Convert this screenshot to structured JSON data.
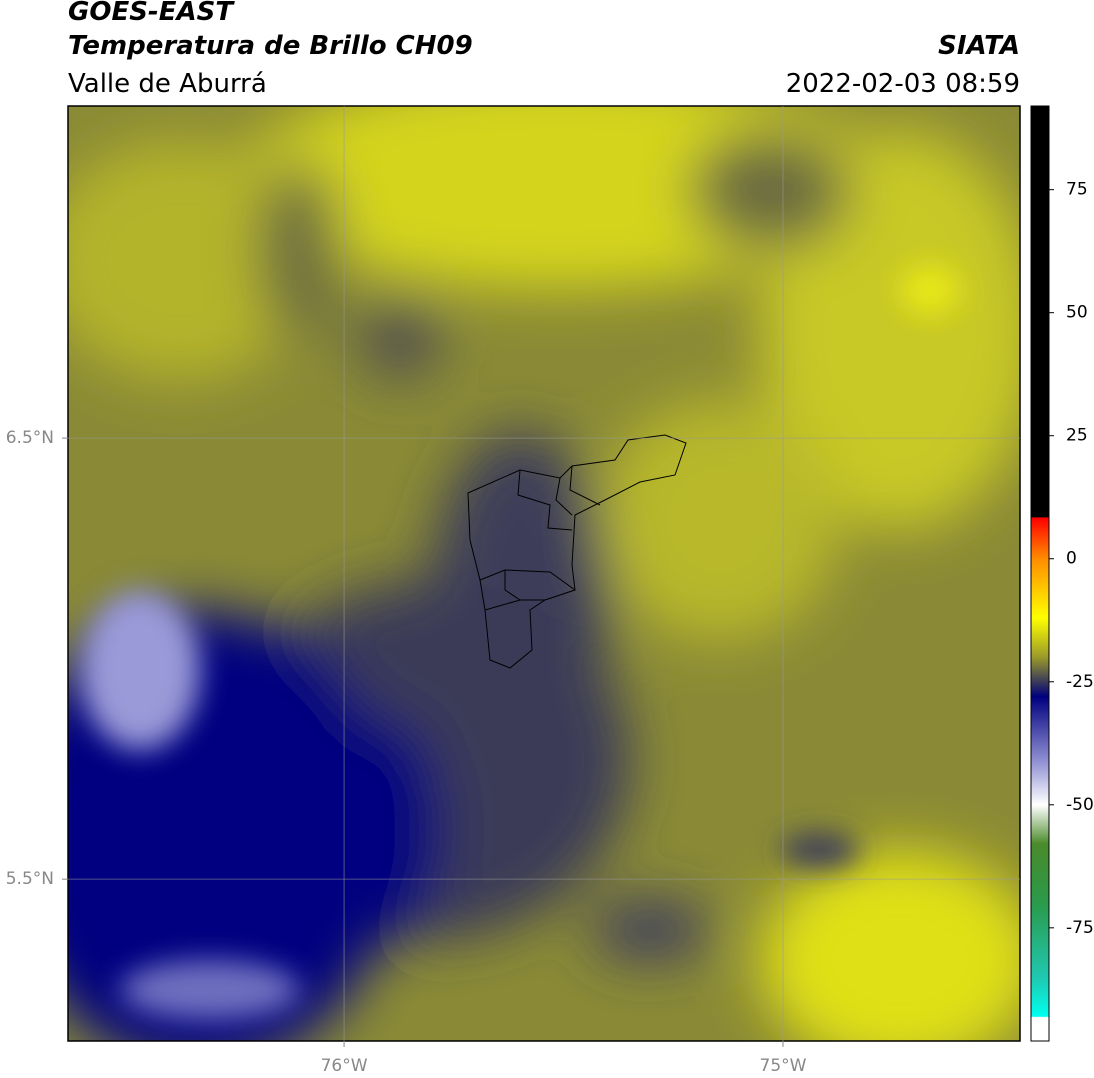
{
  "header": {
    "title": "GOES-EAST",
    "subtitle": "Temperatura de Brillo CH09",
    "region": "Valle de Aburrá",
    "source": "SIATA",
    "datetime": "2022-02-03 08:59"
  },
  "map": {
    "xlim": [
      -76.629,
      -74.46
    ],
    "ylim": [
      5.133,
      7.253
    ],
    "xticks": [
      {
        "value": -76,
        "label": "76°W"
      },
      {
        "value": -75,
        "label": "75°W"
      }
    ],
    "yticks": [
      {
        "value": 5.5,
        "label": "5.5°N"
      },
      {
        "value": 6.5,
        "label": "6.5°N"
      }
    ],
    "grid": true
  },
  "colorbar": {
    "lim": [
      -98,
      92
    ],
    "ticks": [
      -75,
      -50,
      -25,
      0,
      25,
      50,
      75
    ],
    "stops": [
      {
        "value": 92,
        "color": "#000000"
      },
      {
        "value": 8.5,
        "color": "#000000"
      },
      {
        "value": 8.3,
        "color": "#ff0000"
      },
      {
        "value": 0,
        "color": "#ff8c00"
      },
      {
        "value": -12,
        "color": "#ffff00"
      },
      {
        "value": -20,
        "color": "#9a9a2a"
      },
      {
        "value": -25,
        "color": "#3a3a5a"
      },
      {
        "value": -28,
        "color": "#000080"
      },
      {
        "value": -42,
        "color": "#9a9ad8"
      },
      {
        "value": -50,
        "color": "#ffffff"
      },
      {
        "value": -58,
        "color": "#4a8a2a"
      },
      {
        "value": -70,
        "color": "#2a9a4a"
      },
      {
        "value": -85,
        "color": "#20c8b0"
      },
      {
        "value": -93,
        "color": "#00ffee"
      },
      {
        "value": -93.2,
        "color": "#ffffff"
      },
      {
        "value": -98,
        "color": "#ffffff"
      }
    ]
  }
}
